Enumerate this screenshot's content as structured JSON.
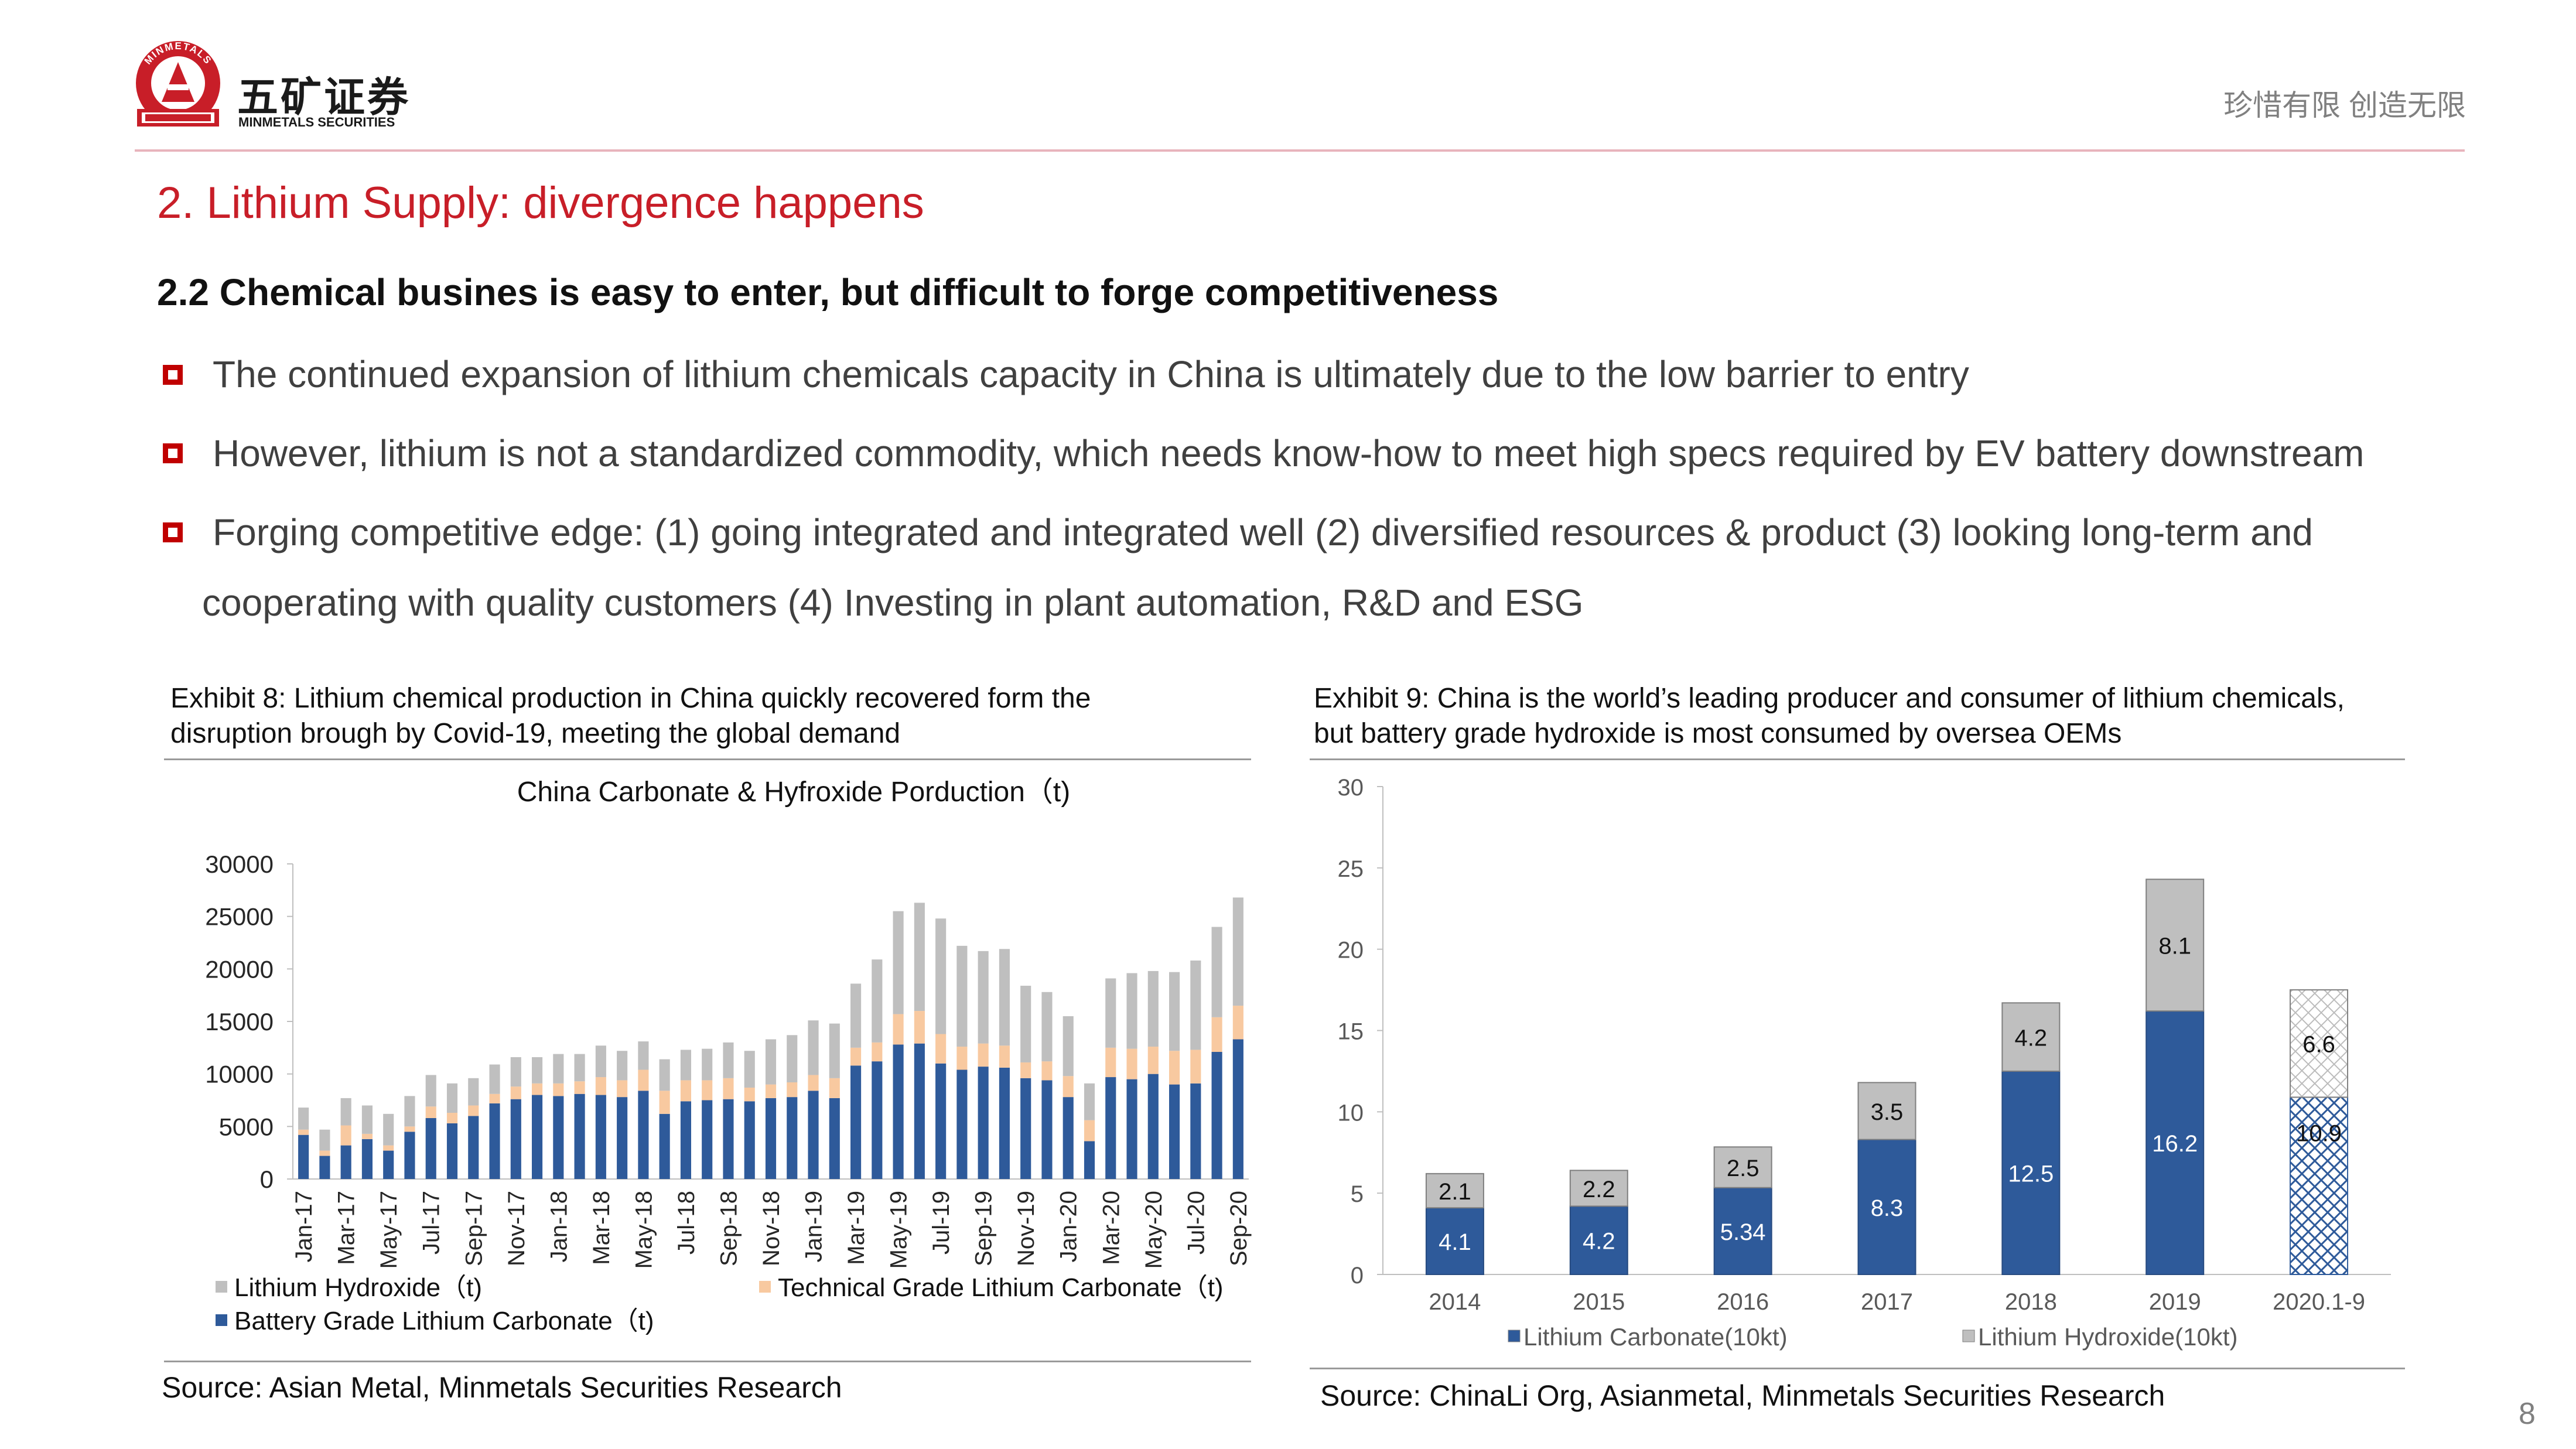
{
  "header": {
    "brand_cn": "五矿证券",
    "brand_en": "MINMETALS SECURITIES",
    "logo_ring_text": "MINMETALS",
    "slogan": "珍惜有限  创造无限",
    "colors": {
      "accent": "#c81e28",
      "rule": "#e8b4bc"
    }
  },
  "section_title": "2.  Lithium Supply: divergence happens",
  "subtitle": "2.2 Chemical busines is easy to enter, but difficult to forge competitiveness",
  "bullets": [
    "The continued expansion of lithium chemicals capacity in China is ultimately due to the low barrier to entry",
    "However, lithium is not a standardized commodity, which needs know-how to meet high specs required by EV battery downstream",
    "Forging competitive edge: (1) going integrated and integrated well (2) diversified resources & product (3) looking long-term and",
    "cooperating with quality customers (4) Investing in plant automation, R&D and ESG"
  ],
  "exhibit8": {
    "title_line1": "Exhibit 8: Lithium chemical production in China quickly recovered form the",
    "title_line2": "disruption brough by Covid-19, meeting the global demand",
    "source": "Source: Asian Metal, Minmetals Securities Research"
  },
  "exhibit9": {
    "title_line1": "Exhibit 9: China is the world’s leading producer and consumer of lithium chemicals,",
    "title_line2": "but battery grade hydroxide is most consumed by oversea OEMs",
    "source": "Source: ChinaLi Org, Asianmetal, Minmetals Securities Research"
  },
  "page_number": "8",
  "chart_data": [
    {
      "type": "bar",
      "stacked": true,
      "title": "China Carbonate & Hyfroxide Porduction（t)",
      "ylim": [
        0,
        30000
      ],
      "yticks": [
        0,
        5000,
        10000,
        15000,
        20000,
        25000,
        30000
      ],
      "categories": [
        "Jan-17",
        "Feb-17",
        "Mar-17",
        "Apr-17",
        "May-17",
        "Jun-17",
        "Jul-17",
        "Aug-17",
        "Sep-17",
        "Oct-17",
        "Nov-17",
        "Dec-17",
        "Jan-18",
        "Feb-18",
        "Mar-18",
        "Apr-18",
        "May-18",
        "Jun-18",
        "Jul-18",
        "Aug-18",
        "Sep-18",
        "Oct-18",
        "Nov-18",
        "Dec-18",
        "Jan-19",
        "Feb-19",
        "Mar-19",
        "Apr-19",
        "May-19",
        "Jun-19",
        "Jul-19",
        "Aug-19",
        "Sep-19",
        "Oct-19",
        "Nov-19",
        "Dec-19",
        "Jan-20",
        "Feb-20",
        "Mar-20",
        "Apr-20",
        "May-20",
        "Jun-20",
        "Jul-20",
        "Aug-20",
        "Sep-20"
      ],
      "tick_labels": [
        "Jan-17",
        "Mar-17",
        "May-17",
        "Jul-17",
        "Sep-17",
        "Nov-17",
        "Jan-18",
        "Mar-18",
        "May-18",
        "Jul-18",
        "Sep-18",
        "Nov-18",
        "Jan-19",
        "Mar-19",
        "May-19",
        "Jul-19",
        "Sep-19",
        "Nov-19",
        "Jan-20",
        "Mar-20",
        "May-20",
        "Jul-20",
        "Sep-20"
      ],
      "legend_position": "bottom",
      "series": [
        {
          "name": "Battery Grade Lithium Carbonate（t)",
          "color": "#2e5a9a",
          "values": [
            4200,
            2200,
            3200,
            3800,
            2700,
            4500,
            5800,
            5300,
            6000,
            7200,
            7600,
            8000,
            7900,
            8100,
            8000,
            7800,
            8400,
            6200,
            7400,
            7500,
            7600,
            7400,
            7700,
            7800,
            8400,
            7700,
            10800,
            11200,
            12800,
            12900,
            11000,
            10400,
            10700,
            10600,
            9600,
            9400,
            7800,
            3600,
            9700,
            9500,
            10000,
            9000,
            9100,
            12100,
            13300
          ]
        },
        {
          "name": "Technical Grade Lithium Carbonate（t)",
          "color": "#f8c9a0",
          "values": [
            500,
            500,
            1900,
            500,
            500,
            500,
            1100,
            1000,
            1000,
            900,
            1200,
            1100,
            1200,
            1200,
            1700,
            1600,
            2000,
            2200,
            2000,
            1900,
            2000,
            1300,
            1300,
            1400,
            1500,
            1900,
            1700,
            1800,
            2900,
            3100,
            2800,
            2200,
            2200,
            2100,
            1500,
            1800,
            2000,
            2000,
            2800,
            2900,
            2600,
            3200,
            3200,
            3300,
            3200
          ]
        },
        {
          "name": "Lithium Hydroxide（t)",
          "color": "#bfbfbf",
          "values": [
            2100,
            2000,
            2600,
            2700,
            3000,
            2900,
            3000,
            2800,
            2600,
            2800,
            2800,
            2500,
            2800,
            2600,
            3000,
            2800,
            2700,
            3000,
            2900,
            3000,
            3400,
            3500,
            4300,
            4500,
            5200,
            5200,
            6100,
            7900,
            9800,
            10300,
            11000,
            9600,
            8800,
            9200,
            7300,
            6600,
            5700,
            3500,
            6600,
            7200,
            7200,
            7500,
            8500,
            8600,
            10300
          ]
        }
      ]
    },
    {
      "type": "bar",
      "stacked": true,
      "ylim": [
        0,
        30
      ],
      "yticks": [
        0,
        5,
        10,
        15,
        20,
        25,
        30
      ],
      "categories": [
        "2014",
        "2015",
        "2016",
        "2017",
        "2018",
        "2019",
        "2020.1-9"
      ],
      "legend_position": "bottom",
      "series": [
        {
          "name": "Lithium Carbonate(10kt)",
          "color": "#2e5a9a",
          "values": [
            4.1,
            4.2,
            5.34,
            8.3,
            12.5,
            16.2,
            10.9
          ],
          "labels": [
            "4.1",
            "4.2",
            "5.34",
            "8.3",
            "12.5",
            "16.2",
            "10.9"
          ]
        },
        {
          "name": "Lithium Hydroxide(10kt)",
          "color": "#bfbfbf",
          "values": [
            2.1,
            2.2,
            2.5,
            3.5,
            4.2,
            8.1,
            6.6
          ],
          "labels": [
            "2.1",
            "2.2",
            "2.5",
            "3.5",
            "4.2",
            "8.1",
            "6.6"
          ]
        }
      ]
    }
  ]
}
